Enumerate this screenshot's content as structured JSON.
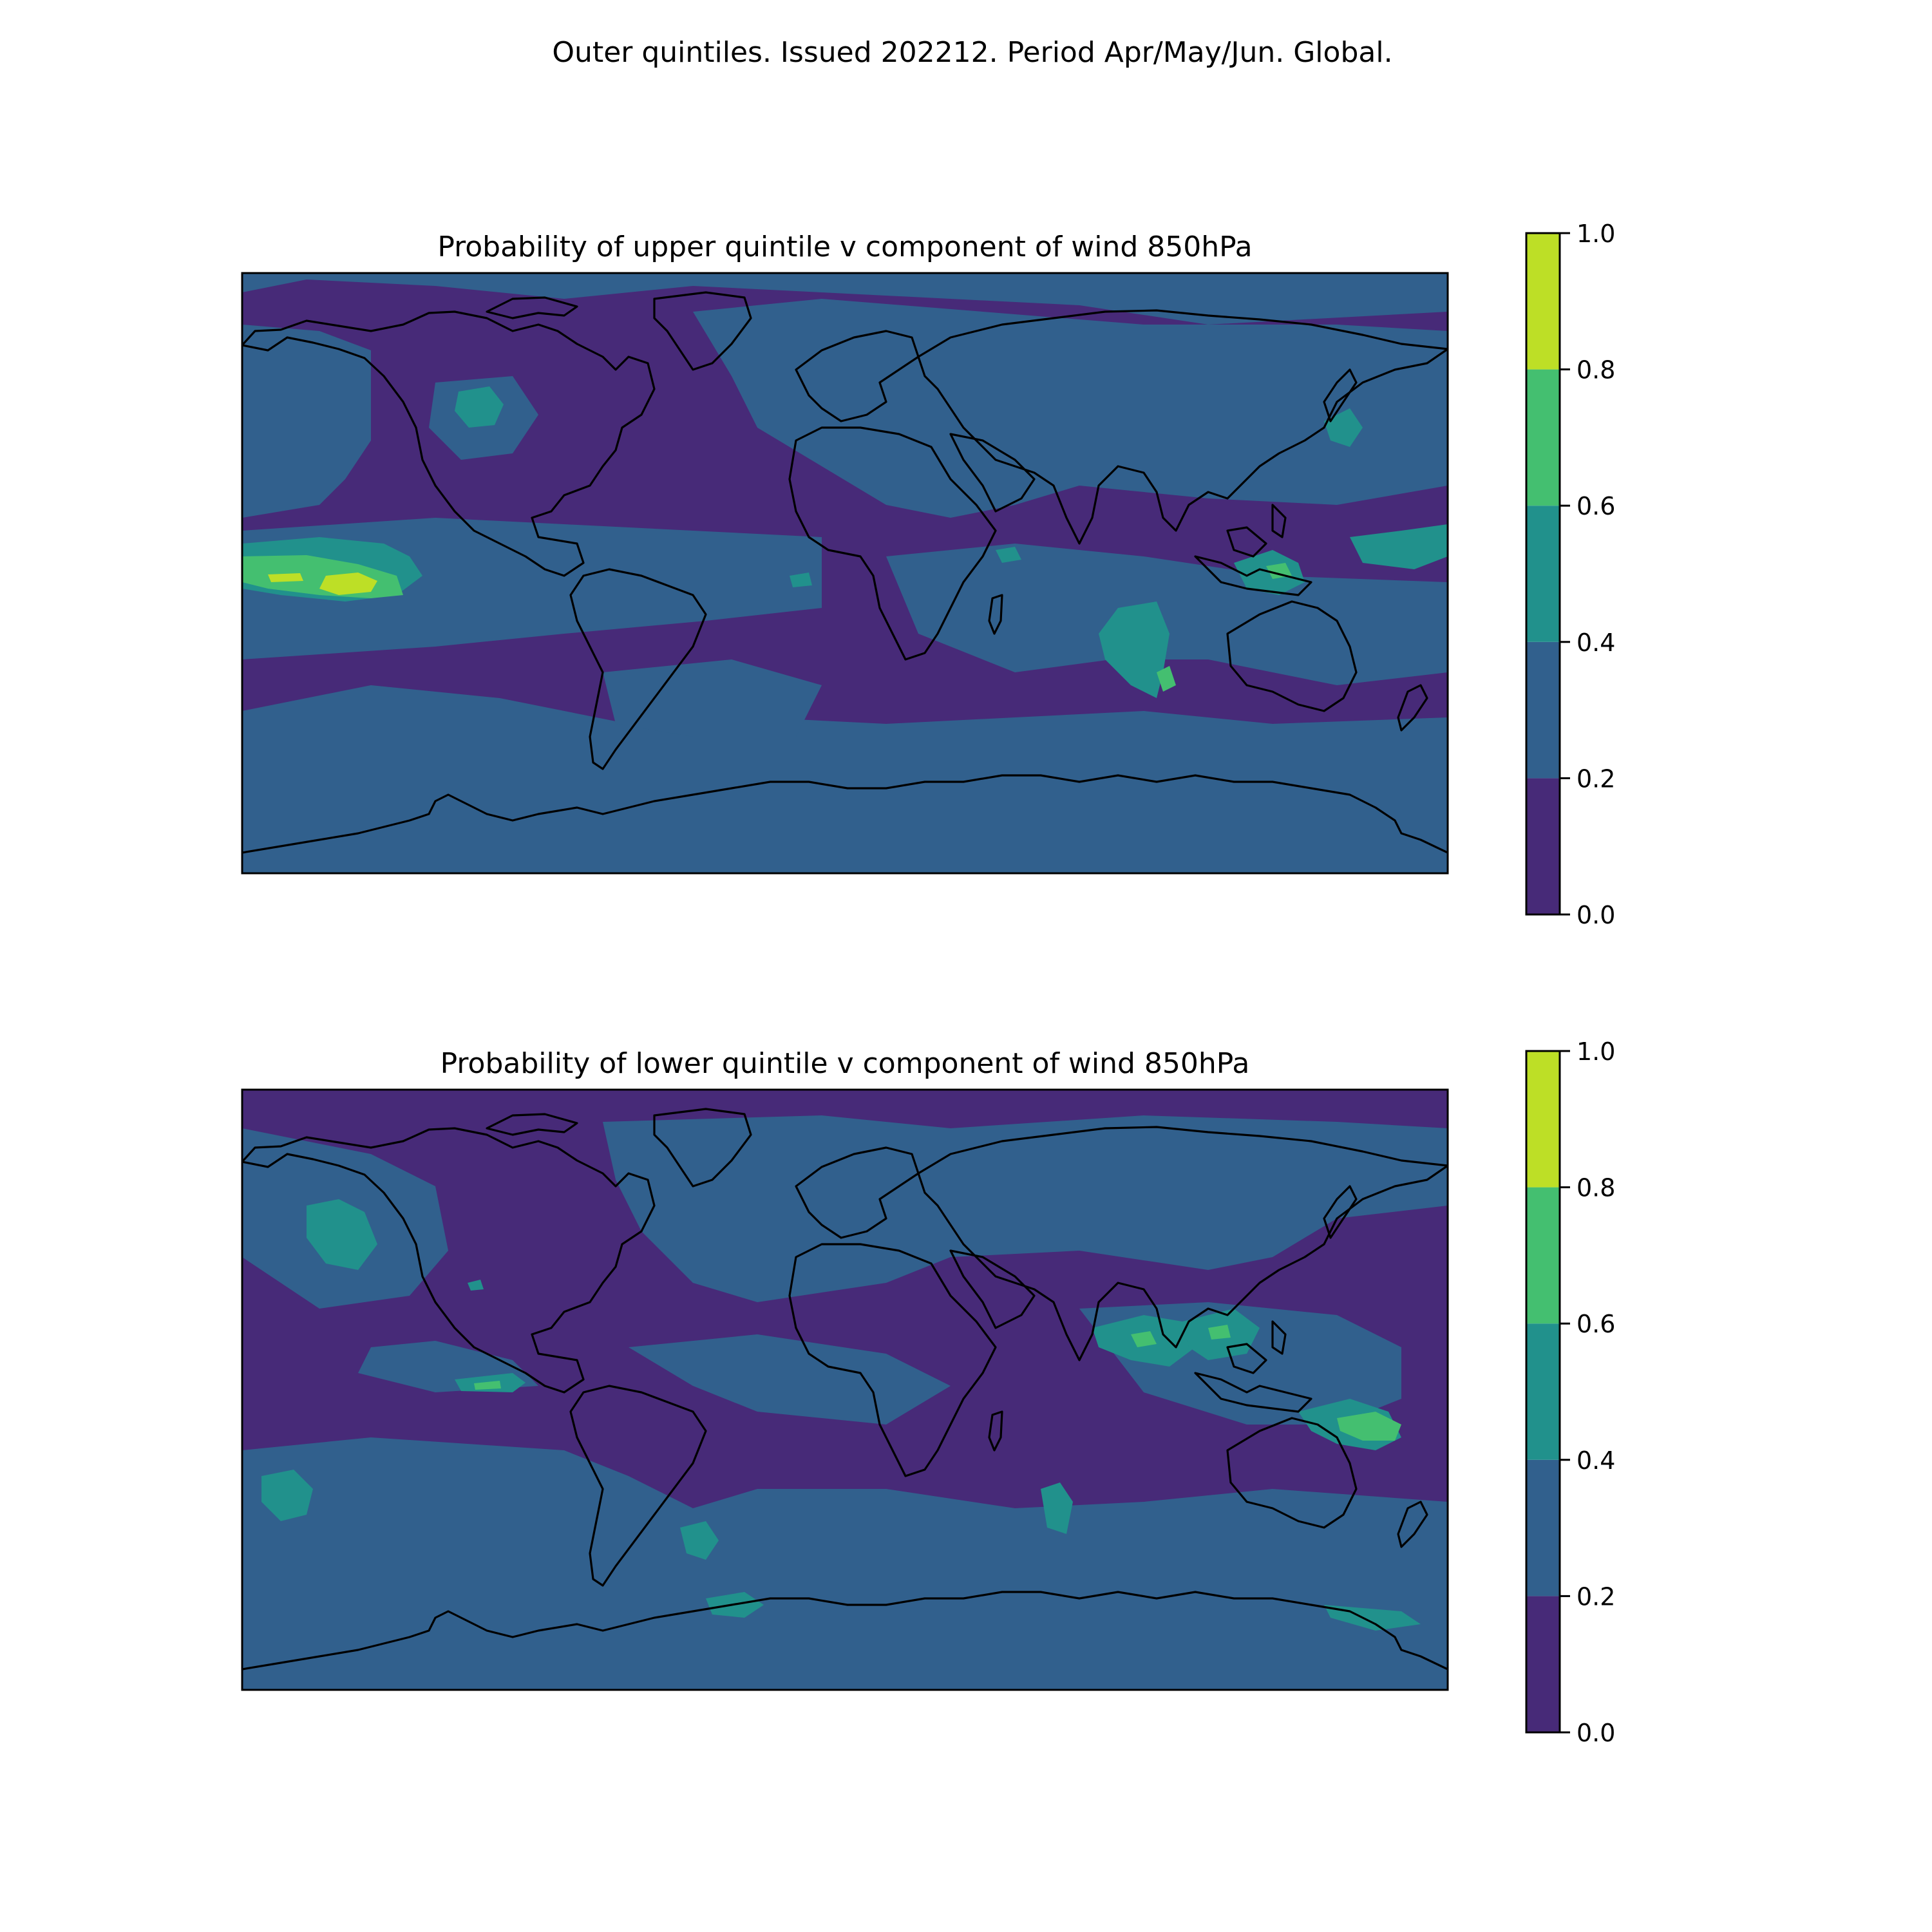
{
  "suptitle": "Outer quintiles. Issued 202212. Period Apr/May/Jun. Global.",
  "colors": {
    "levels": [
      "#440154",
      "#31688e",
      "#21918c",
      "#35b779",
      "#90d743",
      "#bddf26"
    ],
    "band_0_0_2": "#472a78",
    "band_0_2_0_4": "#31608d",
    "band_0_4_0_6": "#21918c",
    "band_0_6_0_8": "#44bf70",
    "band_0_8_1_0": "#bddf26",
    "coastline": "#000000"
  },
  "chart_data": [
    {
      "type": "heatmap",
      "title": "Probability of upper quintile v component of wind 850hPa",
      "colorbar": {
        "ticks": [
          "0.0",
          "0.2",
          "0.4",
          "0.6",
          "0.8",
          "1.0"
        ],
        "levels": [
          0.0,
          0.2,
          0.4,
          0.6,
          0.8,
          1.0
        ]
      },
      "grid": false,
      "projection": "PlateCarree global",
      "regions": [
        {
          "name": "background",
          "level": 0.0
        },
        {
          "name": "southern_ocean_band",
          "level": 0.2
        },
        {
          "name": "tropical_pacific_band",
          "level": 0.2
        },
        {
          "name": "central_pacific_max",
          "level": 0.4
        },
        {
          "name": "central_pacific_core",
          "level": 0.6
        },
        {
          "name": "central_pacific_peak",
          "level": 0.8
        },
        {
          "name": "north_pacific_patch",
          "level": 0.4
        },
        {
          "name": "indian_ocean_patch",
          "level": 0.4
        },
        {
          "name": "maritime_continent",
          "level": 0.4
        },
        {
          "name": "western_pacific",
          "level": 0.4
        },
        {
          "name": "eurasia_band",
          "level": 0.2
        },
        {
          "name": "africa_atlantic_band",
          "level": 0.2
        }
      ]
    },
    {
      "type": "heatmap",
      "title": "Probability of lower quintile v component of wind 850hPa",
      "colorbar": {
        "ticks": [
          "0.0",
          "0.2",
          "0.4",
          "0.6",
          "0.8",
          "1.0"
        ],
        "levels": [
          0.0,
          0.2,
          0.4,
          0.6,
          0.8,
          1.0
        ]
      },
      "grid": false,
      "projection": "PlateCarree global",
      "regions": [
        {
          "name": "background",
          "level": 0.0
        },
        {
          "name": "southern_ocean_band",
          "level": 0.2
        },
        {
          "name": "north_atlantic_band",
          "level": 0.2
        },
        {
          "name": "eurasia_band",
          "level": 0.2
        },
        {
          "name": "north_pacific_patch",
          "level": 0.4
        },
        {
          "name": "south_asia_patch",
          "level": 0.4
        },
        {
          "name": "australia_patch",
          "level": 0.4
        },
        {
          "name": "australia_core",
          "level": 0.6
        },
        {
          "name": "south_pacific_patch",
          "level": 0.4
        },
        {
          "name": "south_atlantic_patch",
          "level": 0.4
        },
        {
          "name": "indian_ocean_patch",
          "level": 0.4
        }
      ]
    }
  ]
}
